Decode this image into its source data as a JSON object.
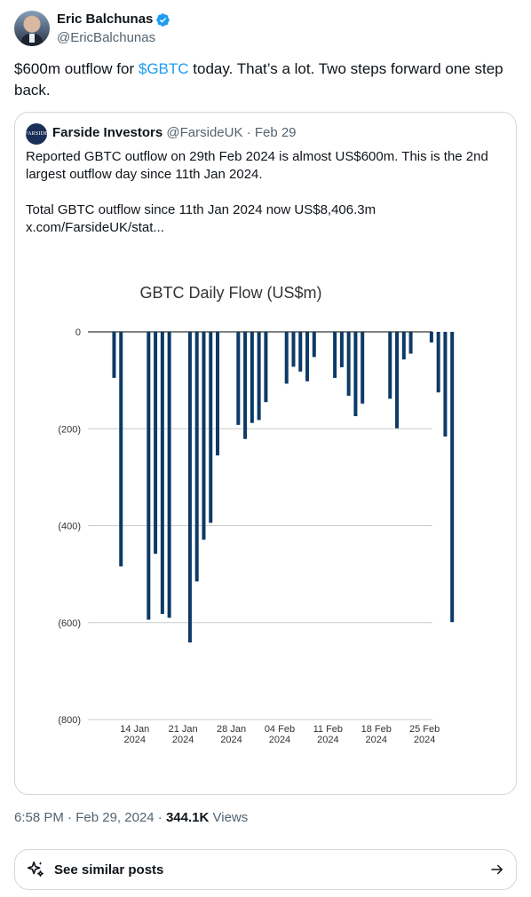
{
  "tweet": {
    "author_name": "Eric Balchunas",
    "author_handle": "@EricBalchunas",
    "text_before": "$600m outflow for ",
    "cashtag": "$GBTC",
    "text_after": " today. That’s a lot. Two steps forward one step back."
  },
  "quote": {
    "logo_text": "FARSIDE",
    "author_name": "Farside Investors",
    "author_handle": "@FarsideUK",
    "separator": "·",
    "date": "Feb 29",
    "line1": "Reported GBTC outflow on 29th Feb 2024 is almost US$600m. This is the 2nd largest outflow day since 11th Jan 2024.",
    "line2": "Total GBTC outflow since 11th Jan 2024 now US$8,406.3m",
    "link": "x.com/FarsideUK/stat..."
  },
  "chart_data": {
    "type": "bar",
    "title": "GBTC Daily Flow (US$m)",
    "ylim": [
      -800,
      0
    ],
    "yticks": [
      {
        "v": 0,
        "label": "0"
      },
      {
        "v": -200,
        "label": "(200)"
      },
      {
        "v": -400,
        "label": "(400)"
      },
      {
        "v": -600,
        "label": "(600)"
      },
      {
        "v": -800,
        "label": "(800)"
      }
    ],
    "xticks": [
      {
        "line1": "14 Jan",
        "line2": "2024",
        "day": 14
      },
      {
        "line1": "21 Jan",
        "line2": "2024",
        "day": 21
      },
      {
        "line1": "28 Jan",
        "line2": "2024",
        "day": 28
      },
      {
        "line1": "04 Feb",
        "line2": "2024",
        "day": 35
      },
      {
        "line1": "11 Feb",
        "line2": "2024",
        "day": 42
      },
      {
        "line1": "18 Feb",
        "line2": "2024",
        "day": 49
      },
      {
        "line1": "25 Feb",
        "line2": "2024",
        "day": 56
      }
    ],
    "bar_color": "#0d3a66",
    "grid": true,
    "series": [
      {
        "dates": [
          "2024-01-11",
          "2024-01-12",
          "2024-01-16",
          "2024-01-17",
          "2024-01-18",
          "2024-01-19",
          "2024-01-22",
          "2024-01-23",
          "2024-01-24",
          "2024-01-25",
          "2024-01-26",
          "2024-01-29",
          "2024-01-30",
          "2024-01-31",
          "2024-02-01",
          "2024-02-02",
          "2024-02-05",
          "2024-02-06",
          "2024-02-07",
          "2024-02-08",
          "2024-02-09",
          "2024-02-12",
          "2024-02-13",
          "2024-02-14",
          "2024-02-15",
          "2024-02-16",
          "2024-02-20",
          "2024-02-21",
          "2024-02-22",
          "2024-02-23",
          "2024-02-26",
          "2024-02-27",
          "2024-02-28",
          "2024-02-29"
        ],
        "values": [
          -95,
          -484,
          -594,
          -458,
          -582,
          -590,
          -641,
          -515,
          -429,
          -394,
          -255,
          -192,
          -221,
          -188,
          -182,
          -145,
          -107,
          -72,
          -82,
          -102,
          -52,
          -95,
          -73,
          -132,
          -174,
          -148,
          -138,
          -199,
          -57,
          -45,
          -22,
          -125,
          -216,
          -599
        ]
      }
    ]
  },
  "meta": {
    "time": "6:58 PM",
    "sep1": " · ",
    "date": "Feb 29, 2024",
    "sep2": " · ",
    "views_count": "344.1K",
    "views_label": " Views"
  },
  "similar": {
    "label": "See similar posts"
  },
  "colors": {
    "accent": "#1d9bf0",
    "text": "#0f1419",
    "muted": "#536471",
    "border": "#cfd9de"
  }
}
